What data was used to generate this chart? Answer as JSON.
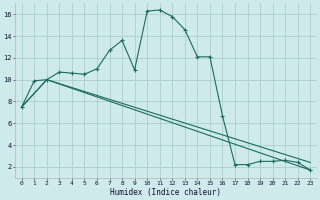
{
  "xlabel": "Humidex (Indice chaleur)",
  "bg_color": "#ceeaea",
  "grid_color": "#aacfcf",
  "line_color": "#1a6b60",
  "xlim": [
    -0.5,
    23.5
  ],
  "ylim": [
    1.0,
    17.0
  ],
  "xticks": [
    0,
    1,
    2,
    3,
    4,
    5,
    6,
    7,
    8,
    9,
    10,
    11,
    12,
    13,
    14,
    15,
    16,
    17,
    18,
    19,
    20,
    21,
    22,
    23
  ],
  "yticks": [
    2,
    4,
    6,
    8,
    10,
    12,
    14,
    16
  ],
  "series_main": {
    "x": [
      0,
      1,
      2,
      3,
      4,
      5,
      6,
      7,
      8,
      9,
      10,
      11,
      12,
      13,
      14,
      15,
      16,
      17,
      18,
      19,
      20,
      21,
      22,
      23
    ],
    "y": [
      7.5,
      9.9,
      10.0,
      10.7,
      10.6,
      10.5,
      11.0,
      12.7,
      13.6,
      10.9,
      16.3,
      16.4,
      15.8,
      14.6,
      12.1,
      12.1,
      6.7,
      2.2,
      2.2,
      2.5,
      2.5,
      2.6,
      2.4,
      1.7
    ]
  },
  "series_trend1": {
    "x": [
      0,
      2,
      23
    ],
    "y": [
      7.5,
      10.0,
      1.7
    ]
  },
  "series_trend2": {
    "x": [
      0,
      2,
      23
    ],
    "y": [
      7.5,
      10.0,
      2.4
    ]
  }
}
